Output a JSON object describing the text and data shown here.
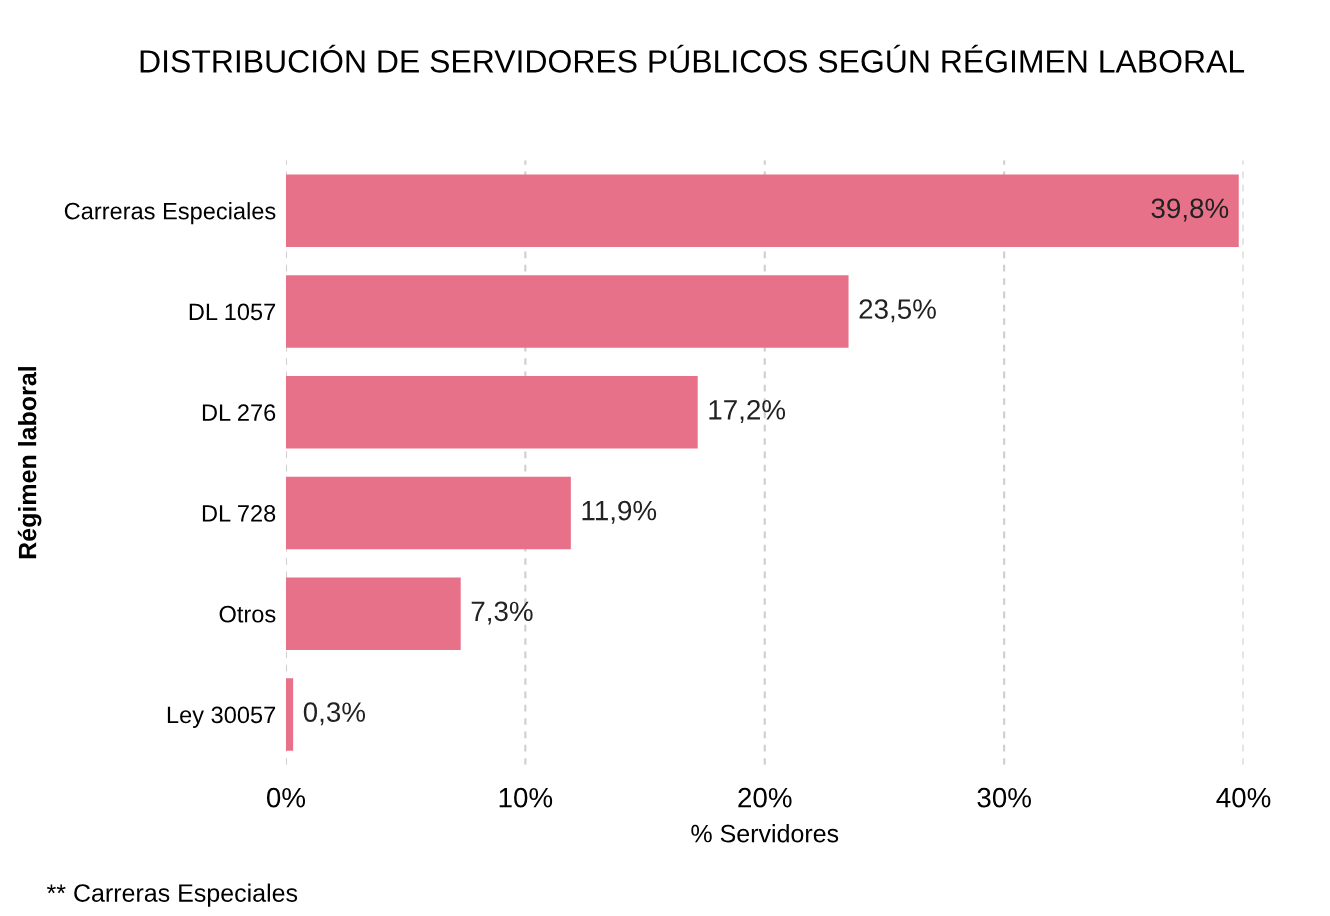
{
  "chart_data": {
    "type": "bar",
    "orientation": "horizontal",
    "title": "DISTRIBUCIÓN DE SERVIDORES PÚBLICOS SEGÚN RÉGIMEN LABORAL",
    "xlabel": "% Servidores",
    "ylabel": "Régimen laboral",
    "categories": [
      "Carreras Especiales",
      "DL 1057",
      "DL 276",
      "DL 728",
      "Otros",
      "Ley 30057"
    ],
    "values": [
      39.8,
      23.5,
      17.2,
      11.9,
      7.3,
      0.3
    ],
    "value_labels": [
      "39,8%",
      "23,5%",
      "17,2%",
      "11,9%",
      "7,3%",
      "0,3%"
    ],
    "color": "#e8718a",
    "xlim": [
      0,
      40
    ],
    "xticks": [
      {
        "value": 0,
        "label": "0%"
      },
      {
        "value": 10,
        "label": "10%"
      },
      {
        "value": 20,
        "label": "20%"
      },
      {
        "value": 30,
        "label": "30%"
      },
      {
        "value": 40,
        "label": "40%"
      }
    ],
    "grid": "x",
    "annotations": [
      "** Carreras Especiales"
    ]
  }
}
